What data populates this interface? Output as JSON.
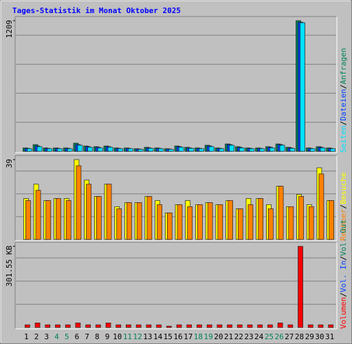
{
  "legend_separator": "/",
  "chart_data": [
    {
      "type": "bar",
      "title": "Tages-Statistik im Monat Oktober 2025",
      "ylim": [
        0,
        1209
      ],
      "yticks": [
        1209
      ],
      "series": [
        {
          "name": "Anfragen",
          "color": "#00805c",
          "values": [
            32,
            63,
            32,
            32,
            32,
            76,
            50,
            44,
            50,
            32,
            32,
            25,
            38,
            32,
            25,
            50,
            38,
            32,
            57,
            32,
            69,
            44,
            32,
            32,
            44,
            69,
            38,
            1209,
            32,
            44,
            32
          ]
        },
        {
          "name": "Dateien",
          "color": "#0040ff",
          "values": [
            28,
            50,
            28,
            28,
            28,
            63,
            44,
            38,
            44,
            28,
            28,
            22,
            32,
            28,
            22,
            44,
            32,
            28,
            50,
            28,
            63,
            38,
            28,
            28,
            38,
            63,
            32,
            1195,
            28,
            38,
            28
          ]
        },
        {
          "name": "Seiten",
          "color": "#00e0ff",
          "values": [
            25,
            44,
            25,
            25,
            25,
            57,
            38,
            32,
            38,
            25,
            25,
            19,
            28,
            25,
            19,
            38,
            28,
            25,
            44,
            25,
            57,
            32,
            25,
            25,
            32,
            57,
            28,
            1190,
            25,
            32,
            25
          ]
        }
      ]
    },
    {
      "type": "bar",
      "ylim": [
        0,
        39
      ],
      "yticks": [
        39
      ],
      "series": [
        {
          "name": "Besuche",
          "color": "#ffff00",
          "values": [
            20,
            27,
            19,
            20,
            20,
            39,
            29,
            21,
            27,
            16,
            18,
            18,
            21,
            19,
            13,
            17,
            19,
            17,
            18,
            17,
            19,
            15,
            20,
            20,
            17,
            26,
            16,
            22,
            17,
            35,
            19
          ]
        },
        {
          "name": "Rechner",
          "color": "#ff8000",
          "values": [
            19,
            24,
            19,
            20,
            19,
            36,
            27,
            21,
            27,
            15,
            18,
            18,
            21,
            17,
            13,
            17,
            16,
            17,
            18,
            17,
            19,
            15,
            17,
            20,
            15,
            26,
            16,
            21,
            16,
            32,
            19
          ]
        }
      ]
    },
    {
      "type": "bar",
      "categories": [
        "1",
        "2",
        "3",
        "4",
        "5",
        "6",
        "7",
        "8",
        "9",
        "10",
        "11",
        "12",
        "13",
        "14",
        "15",
        "16",
        "17",
        "18",
        "19",
        "20",
        "21",
        "22",
        "23",
        "24",
        "25",
        "26",
        "27",
        "28",
        "29",
        "30",
        "31"
      ],
      "highlight_categories": [
        "4",
        "5",
        "11",
        "12",
        "18",
        "19",
        "25",
        "26"
      ],
      "highlight_color": "#00805c",
      "ylim": [
        0,
        301.55
      ],
      "yticks": [
        {
          "value": 301.55,
          "label": "301.55 KB"
        }
      ],
      "series": [
        {
          "name": "Volumen",
          "color": "#ff0000",
          "values": [
            10,
            17,
            10,
            10,
            10,
            17,
            10,
            10,
            17,
            10,
            10,
            10,
            10,
            10,
            5,
            10,
            10,
            10,
            10,
            10,
            10,
            10,
            10,
            10,
            10,
            17,
            10,
            301.55,
            10,
            10,
            10
          ]
        }
      ],
      "legend_extra": [
        {
          "name": "Vol. In",
          "color": "#0040ff"
        },
        {
          "name": "Vol. Out",
          "color": "#00805c"
        }
      ]
    }
  ]
}
